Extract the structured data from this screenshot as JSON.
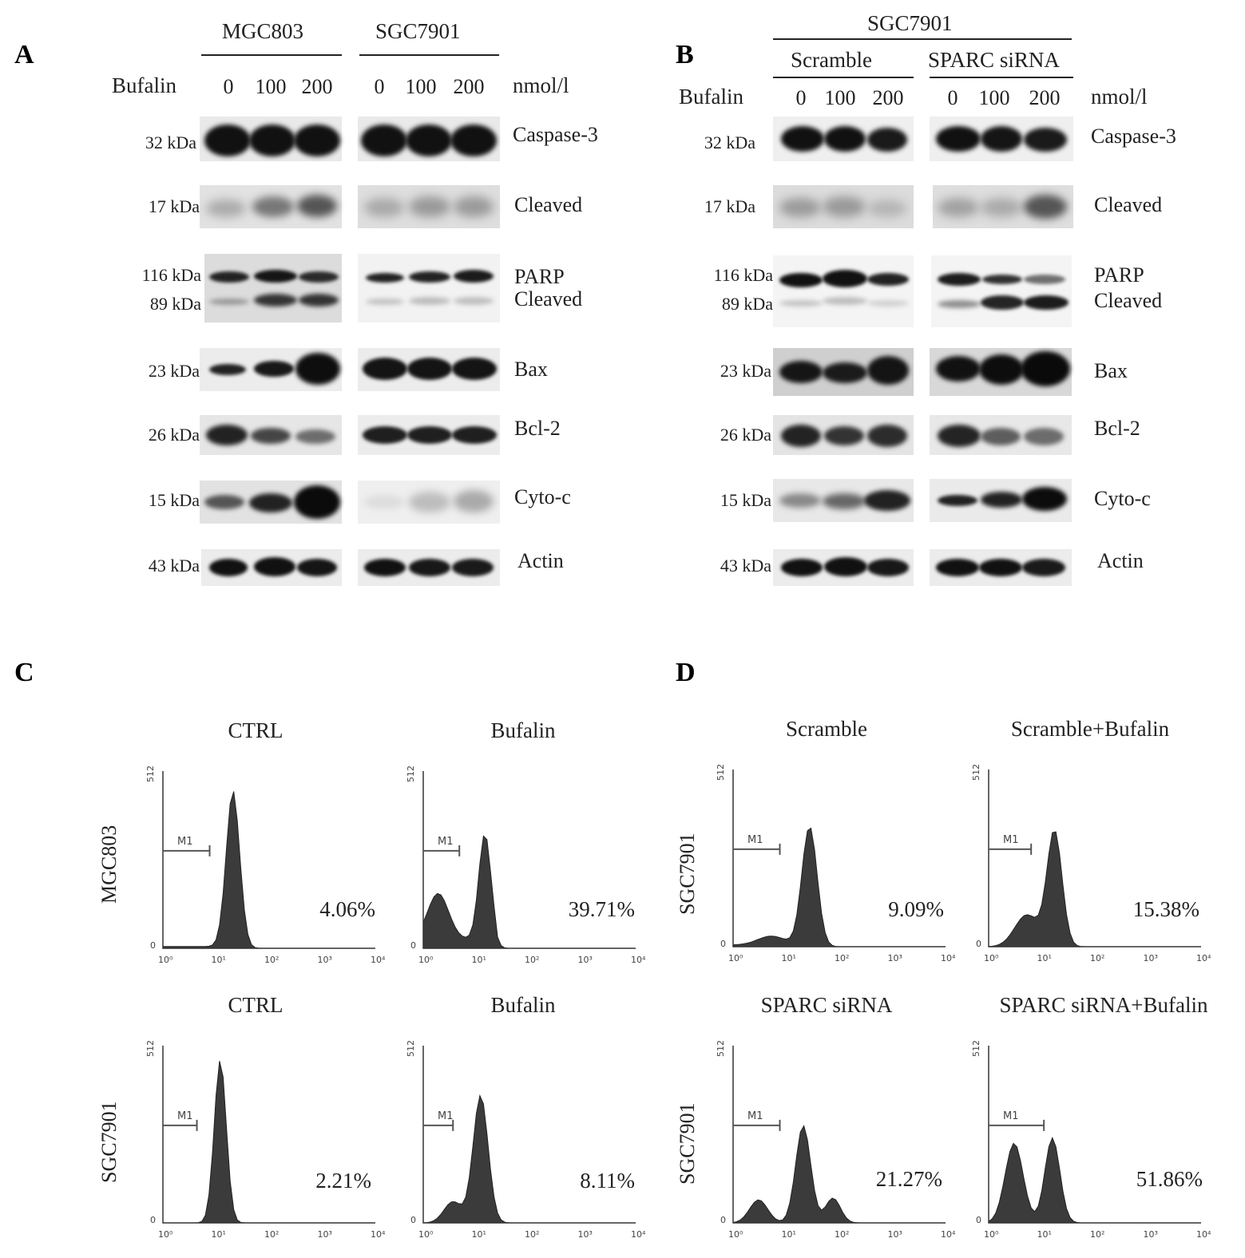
{
  "panels": {
    "A": "A",
    "B": "B",
    "C": "C",
    "D": "D"
  },
  "panelA": {
    "groups": [
      "MGC803",
      "SGC7901"
    ],
    "treatment_label": "Bufalin",
    "unit": "nmol/l",
    "doses": [
      "0",
      "100",
      "200"
    ],
    "rows": [
      {
        "mw": "32 kDa",
        "protein": "Caspase-3"
      },
      {
        "mw": "17 kDa",
        "protein": "Cleaved"
      },
      {
        "mw": "116 kDa",
        "protein": "PARP"
      },
      {
        "mw": "89 kDa",
        "protein": "Cleaved"
      },
      {
        "mw": "23 kDa",
        "protein": "Bax"
      },
      {
        "mw": "26 kDa",
        "protein": "Bcl-2"
      },
      {
        "mw": "15 kDa",
        "protein": "Cyto-c"
      },
      {
        "mw": "43 kDa",
        "protein": "Actin"
      }
    ]
  },
  "panelB": {
    "top_group": "SGC7901",
    "groups": [
      "Scramble",
      "SPARC siRNA"
    ],
    "treatment_label": "Bufalin",
    "unit": "nmol/l",
    "doses": [
      "0",
      "100",
      "200"
    ],
    "rows": [
      {
        "mw": "32 kDa",
        "protein": "Caspase-3"
      },
      {
        "mw": "17 kDa",
        "protein": "Cleaved"
      },
      {
        "mw": "116 kDa",
        "protein": "PARP"
      },
      {
        "mw": "89 kDa",
        "protein": "Cleaved"
      },
      {
        "mw": "23 kDa",
        "protein": "Bax"
      },
      {
        "mw": "26 kDa",
        "protein": "Bcl-2"
      },
      {
        "mw": "15 kDa",
        "protein": "Cyto-c"
      },
      {
        "mw": "43 kDa",
        "protein": "Actin"
      }
    ]
  },
  "axis": {
    "ymax": "512",
    "ymin": "0",
    "xticks": [
      "10⁰",
      "10¹",
      "10²",
      "10³",
      "10⁴"
    ],
    "gate": "M1"
  },
  "panelC": {
    "rows": [
      "MGC803",
      "SGC7901"
    ],
    "plots": [
      {
        "title": "CTRL",
        "pct": "4.06%"
      },
      {
        "title": "Bufalin",
        "pct": "39.71%"
      },
      {
        "title": "CTRL",
        "pct": "2.21%"
      },
      {
        "title": "Bufalin",
        "pct": "8.11%"
      }
    ]
  },
  "panelD": {
    "rows": [
      "SGC7901",
      "SGC7901"
    ],
    "plots": [
      {
        "title": "Scramble",
        "pct": "9.09%"
      },
      {
        "title": "Scramble+Bufalin",
        "pct": "15.38%"
      },
      {
        "title": "SPARC siRNA",
        "pct": "21.27%"
      },
      {
        "title": "SPARC siRNA+Bufalin",
        "pct": "51.86%"
      }
    ]
  }
}
